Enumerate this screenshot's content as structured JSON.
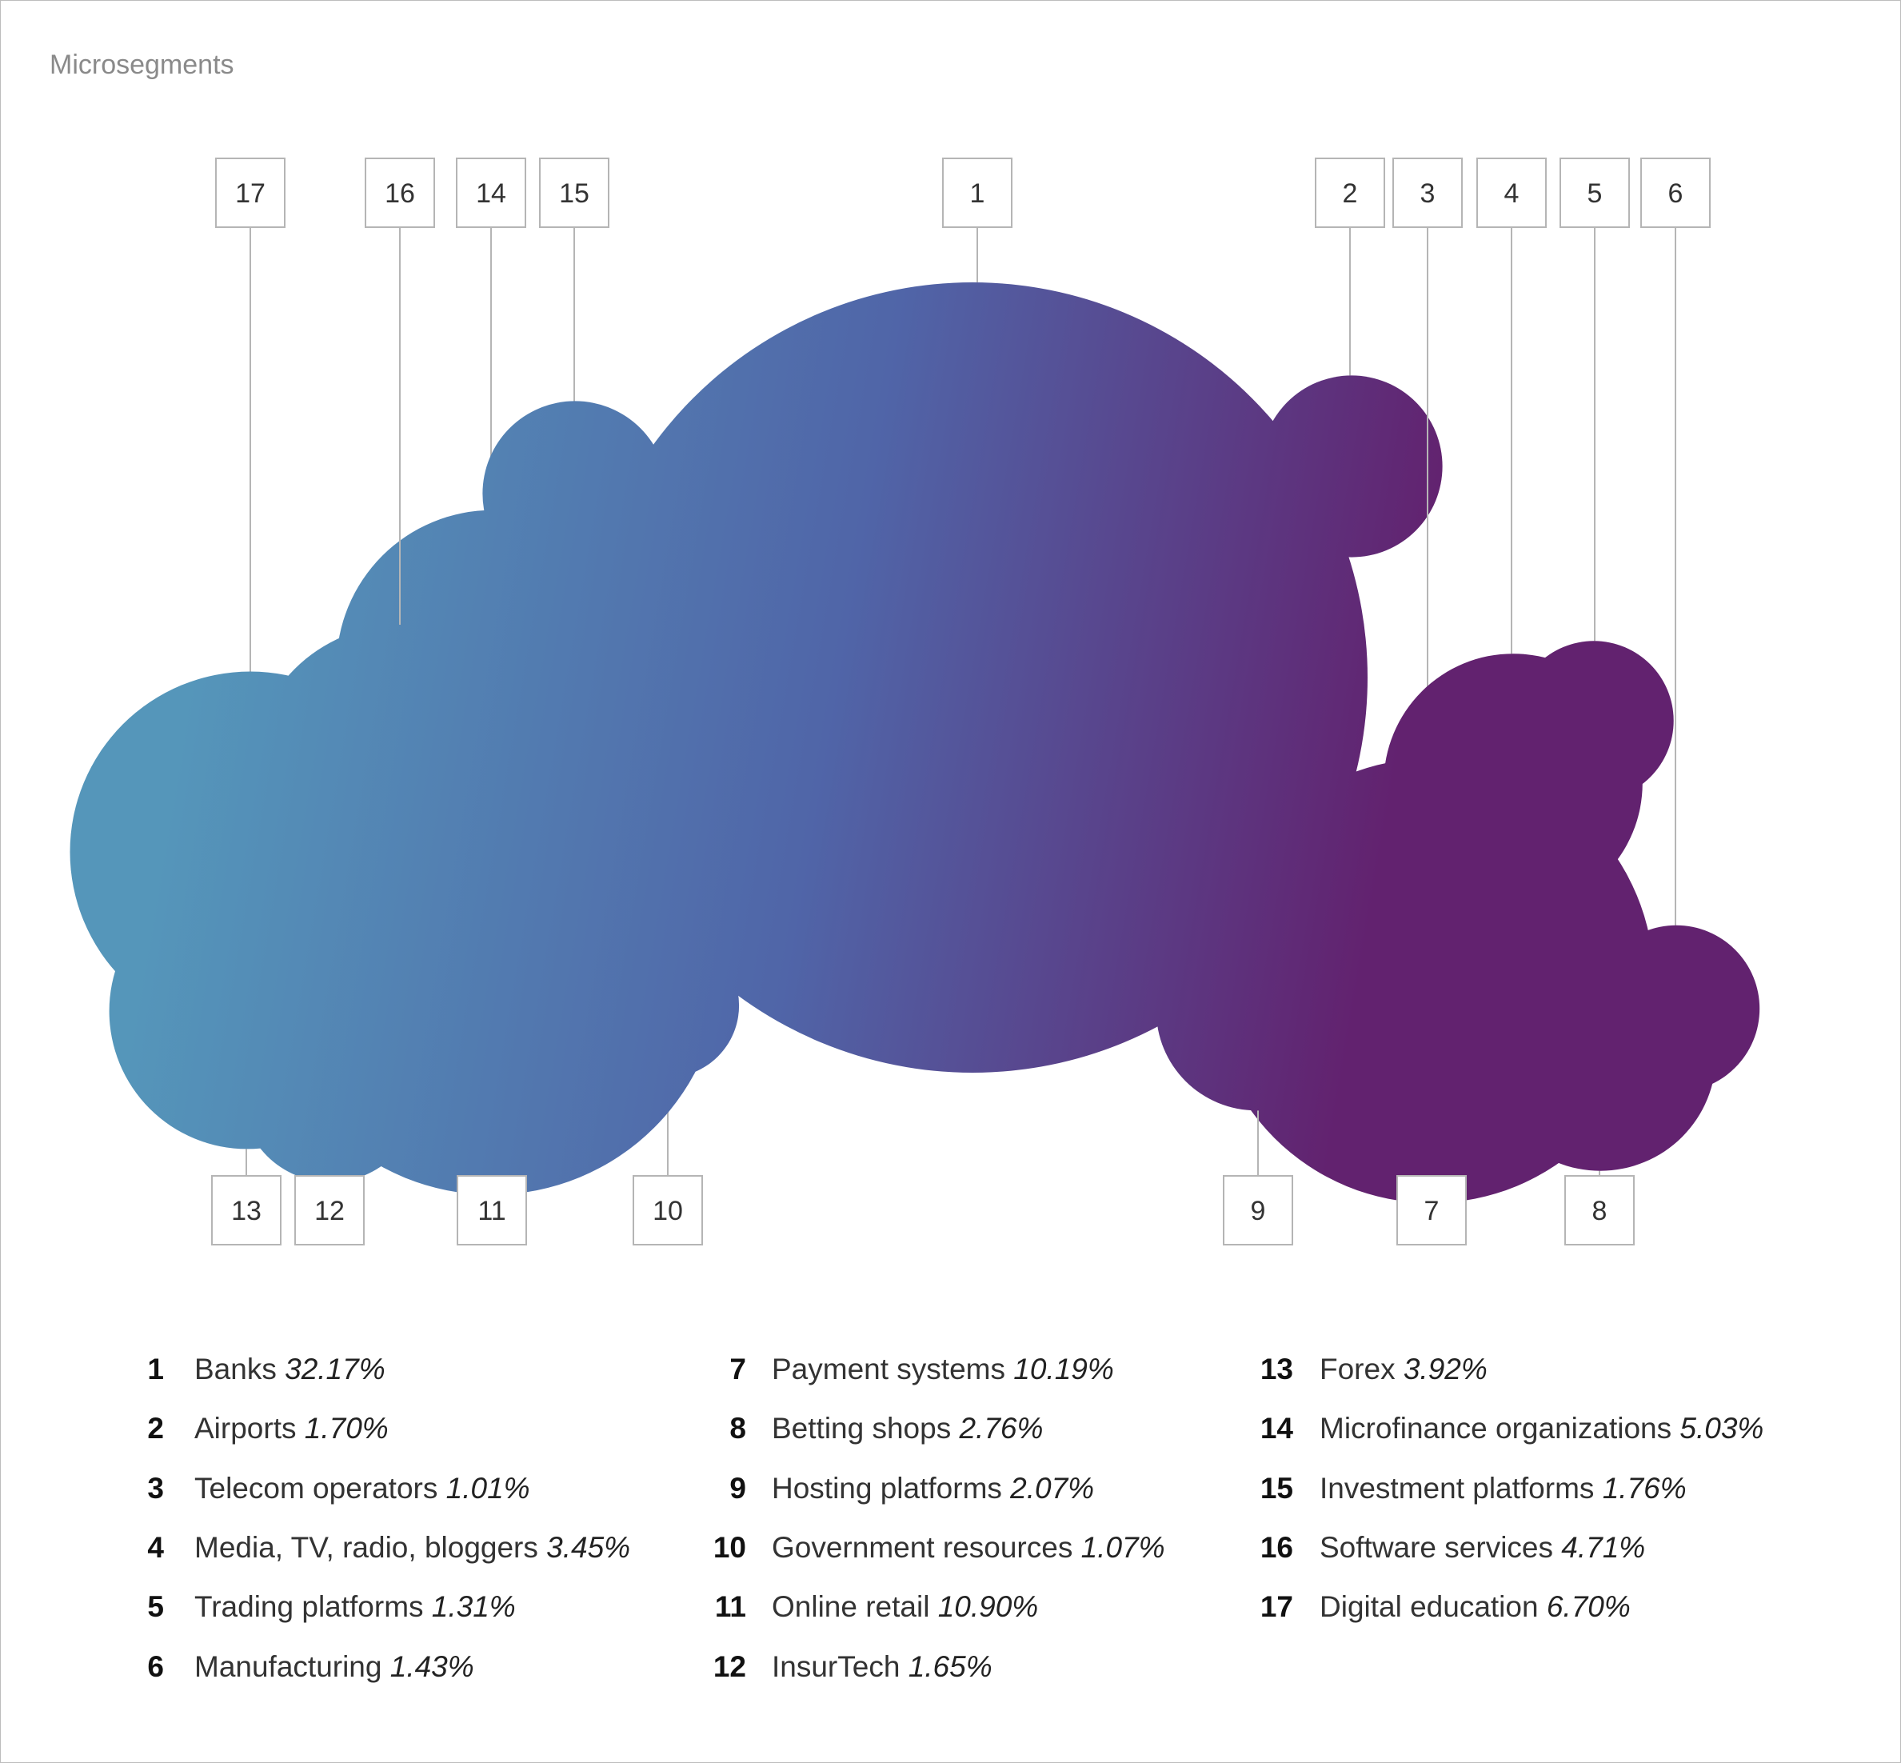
{
  "title": "Microsegments",
  "chart_data": {
    "type": "bubble",
    "series": [
      {
        "id": "1",
        "label": "Banks",
        "value": 32.17,
        "display": "32.17%"
      },
      {
        "id": "2",
        "label": "Airports",
        "value": 1.7,
        "display": "1.70%"
      },
      {
        "id": "3",
        "label": "Telecom operators",
        "value": 1.01,
        "display": "1.01%"
      },
      {
        "id": "4",
        "label": "Media, TV, radio, bloggers",
        "value": 3.45,
        "display": "3.45%"
      },
      {
        "id": "5",
        "label": "Trading platforms",
        "value": 1.31,
        "display": "1.31%"
      },
      {
        "id": "6",
        "label": "Manufacturing",
        "value": 1.43,
        "display": "1.43%"
      },
      {
        "id": "7",
        "label": "Payment systems",
        "value": 10.19,
        "display": "10.19%"
      },
      {
        "id": "8",
        "label": "Betting shops",
        "value": 2.76,
        "display": "2.76%"
      },
      {
        "id": "9",
        "label": "Hosting platforms",
        "value": 2.07,
        "display": "2.07%"
      },
      {
        "id": "10",
        "label": "Government resources",
        "value": 1.07,
        "display": "1.07%"
      },
      {
        "id": "11",
        "label": "Online retail",
        "value": 10.9,
        "display": "10.90%"
      },
      {
        "id": "12",
        "label": "InsurTech",
        "value": 1.65,
        "display": "1.65%"
      },
      {
        "id": "13",
        "label": "Forex",
        "value": 3.92,
        "display": "3.92%"
      },
      {
        "id": "14",
        "label": "Microfinance organizations",
        "value": 5.03,
        "display": "5.03%"
      },
      {
        "id": "15",
        "label": "Investment platforms",
        "value": 1.76,
        "display": "1.76%"
      },
      {
        "id": "16",
        "label": "Software services",
        "value": 4.71,
        "display": "4.71%"
      },
      {
        "id": "17",
        "label": "Digital education",
        "value": 6.7,
        "display": "6.70%"
      }
    ],
    "gradient": {
      "start": "#5596ba",
      "mid": "#5065a8",
      "end": "#62226f"
    }
  }
}
